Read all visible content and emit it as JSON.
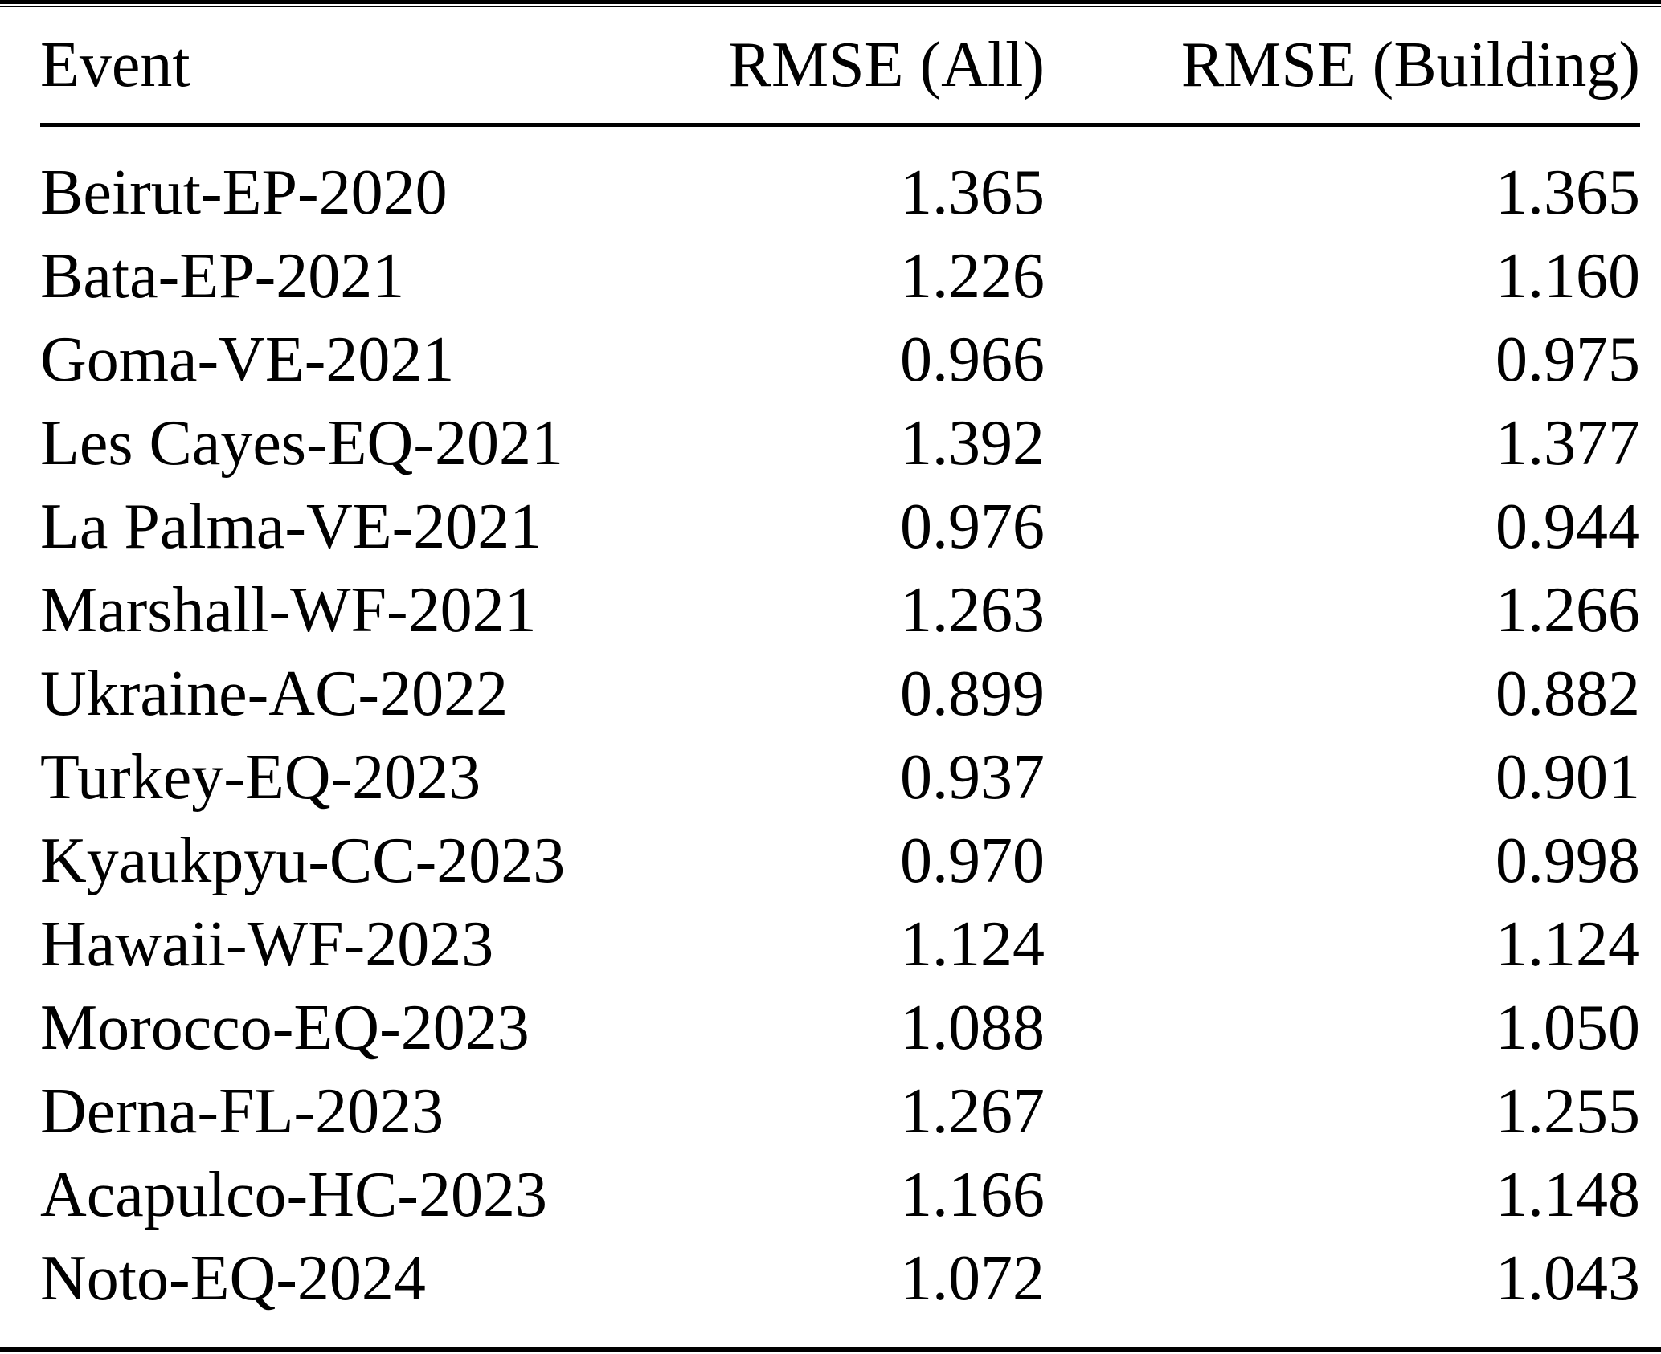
{
  "table": {
    "columns": [
      "Event",
      "RMSE (All)",
      "RMSE (Building)"
    ],
    "rows": [
      [
        "Beirut-EP-2020",
        "1.365",
        "1.365"
      ],
      [
        "Bata-EP-2021",
        "1.226",
        "1.160"
      ],
      [
        "Goma-VE-2021",
        "0.966",
        "0.975"
      ],
      [
        "Les Cayes-EQ-2021",
        "1.392",
        "1.377"
      ],
      [
        "La Palma-VE-2021",
        "0.976",
        "0.944"
      ],
      [
        "Marshall-WF-2021",
        "1.263",
        "1.266"
      ],
      [
        "Ukraine-AC-2022",
        "0.899",
        "0.882"
      ],
      [
        "Turkey-EQ-2023",
        "0.937",
        "0.901"
      ],
      [
        "Kyaukpyu-CC-2023",
        "0.970",
        "0.998"
      ],
      [
        "Hawaii-WF-2023",
        "1.124",
        "1.124"
      ],
      [
        "Morocco-EQ-2023",
        "1.088",
        "1.050"
      ],
      [
        "Derna-FL-2023",
        "1.267",
        "1.255"
      ],
      [
        "Acapulco-HC-2023",
        "1.166",
        "1.148"
      ],
      [
        "Noto-EQ-2024",
        "1.072",
        "1.043"
      ]
    ],
    "colors": {
      "text": "#000000",
      "background": "#ffffff",
      "rule": "#000000"
    }
  }
}
